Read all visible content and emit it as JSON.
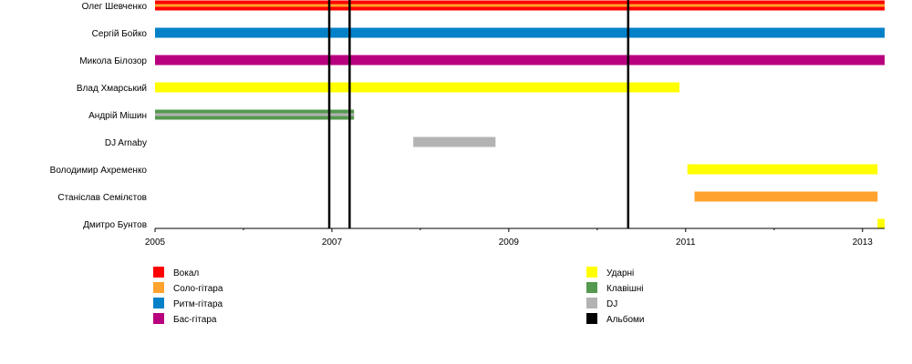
{
  "chart_data": {
    "type": "timeline",
    "xlim": [
      2005,
      2013.25
    ],
    "x_ticks": [
      2005,
      2007,
      2009,
      2011,
      2013
    ],
    "x_tick_labels": [
      "2005",
      "2007",
      "2009",
      "2011",
      "2013"
    ],
    "members": [
      {
        "name": "Олег Шевченко",
        "bars": [
          {
            "role": "Вокал",
            "start": 2005,
            "end": 2013.25
          },
          {
            "role": "Соло-гітара",
            "start": 2005,
            "end": 2013.25,
            "thin": true
          }
        ]
      },
      {
        "name": "Сергій Бойко",
        "bars": [
          {
            "role": "Ритм-гітара",
            "start": 2005,
            "end": 2013.25
          }
        ]
      },
      {
        "name": "Микола Білозор",
        "bars": [
          {
            "role": "Бас-гітара",
            "start": 2005,
            "end": 2013.25
          }
        ]
      },
      {
        "name": "Влад Хмарський",
        "bars": [
          {
            "role": "Ударні",
            "start": 2005,
            "end": 2010.93
          }
        ]
      },
      {
        "name": "Андрій Мішин",
        "bars": [
          {
            "role": "Клавішні",
            "start": 2005,
            "end": 2007.25
          },
          {
            "role": "DJ",
            "start": 2005,
            "end": 2007.25,
            "thin": true
          }
        ]
      },
      {
        "name": "DJ Arnaby",
        "bars": [
          {
            "role": "DJ",
            "start": 2007.92,
            "end": 2008.85
          }
        ]
      },
      {
        "name": "Володимир Ахременко",
        "bars": [
          {
            "role": "Ударні",
            "start": 2011.02,
            "end": 2013.17
          }
        ]
      },
      {
        "name": "Станіслав Семілєтов",
        "bars": [
          {
            "role": "Соло-гітара",
            "start": 2011.1,
            "end": 2013.17
          }
        ]
      },
      {
        "name": "Дмитро Бунтов",
        "bars": [
          {
            "role": "Ударні",
            "start": 2013.17,
            "end": 2013.25
          }
        ]
      }
    ],
    "albums": [
      2006.97,
      2007.2,
      2010.35
    ],
    "legend": [
      {
        "label": "Вокал",
        "color": "#ff0000"
      },
      {
        "label": "Соло-гітара",
        "color": "#ffa32e"
      },
      {
        "label": "Ритм-гітара",
        "color": "#0081c8"
      },
      {
        "label": "Бас-гітара",
        "color": "#b8007f"
      },
      {
        "label": "Ударні",
        "color": "#ffff00"
      },
      {
        "label": "Клавішні",
        "color": "#54994f"
      },
      {
        "label": "DJ",
        "color": "#b3b3b3"
      },
      {
        "label": "Альбоми",
        "color": "#000000"
      }
    ]
  }
}
